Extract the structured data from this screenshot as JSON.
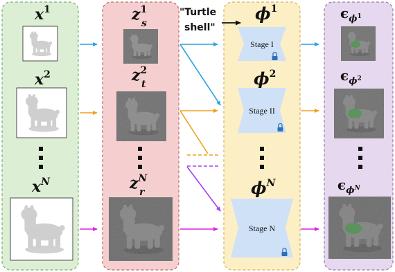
{
  "columns": {
    "inputs": {
      "labels": [
        {
          "base": "x",
          "sup": "1"
        },
        {
          "base": "x",
          "sup": "2"
        },
        {
          "base": "x",
          "sup": "N"
        }
      ]
    },
    "latents": {
      "labels": [
        {
          "base": "z",
          "sup": "1",
          "sub": "s"
        },
        {
          "base": "z",
          "sup": "2",
          "sub": "t"
        },
        {
          "base": "z",
          "sup": "N",
          "sub": "r"
        }
      ]
    },
    "stages": {
      "labels": [
        {
          "base": "ϕ",
          "sup": "1"
        },
        {
          "base": "ϕ",
          "sup": "2"
        },
        {
          "base": "ϕ",
          "sup": "N"
        }
      ],
      "blocks": [
        "Stage I",
        "Stage II",
        "Stage N"
      ]
    },
    "outputs": {
      "labels": [
        {
          "base": "ϵ",
          "sub": "ϕ",
          "subsup": "1"
        },
        {
          "base": "ϵ",
          "sub": "ϕ",
          "subsup": "2"
        },
        {
          "base": "ϵ",
          "sub": "ϕ",
          "subsup": "N"
        }
      ]
    }
  },
  "prompt": {
    "line1": "\"Turtle",
    "line2": "shell\""
  },
  "colors": {
    "inputs_fill": "#dcefd5",
    "inputs_stroke": "#7ab06a",
    "latents_fill": "#f5cfcf",
    "latents_stroke": "#c06a6a",
    "stages_fill": "#fcefc6",
    "stages_stroke": "#d8b45a",
    "outputs_fill": "#e6d8ee",
    "outputs_stroke": "#9a7ab0",
    "arrow_1": "#2aa4e0",
    "arrow_2": "#f0a020",
    "arrow_N": "#e020e0",
    "arrow_violet": "#a040f0",
    "stage_block": "#cfe1f7",
    "lock": "#2f6fb5"
  },
  "icons": [
    "lock-icon",
    "arrow-right-icon",
    "turtle-toy-image",
    "vertical-ellipsis-icon"
  ]
}
